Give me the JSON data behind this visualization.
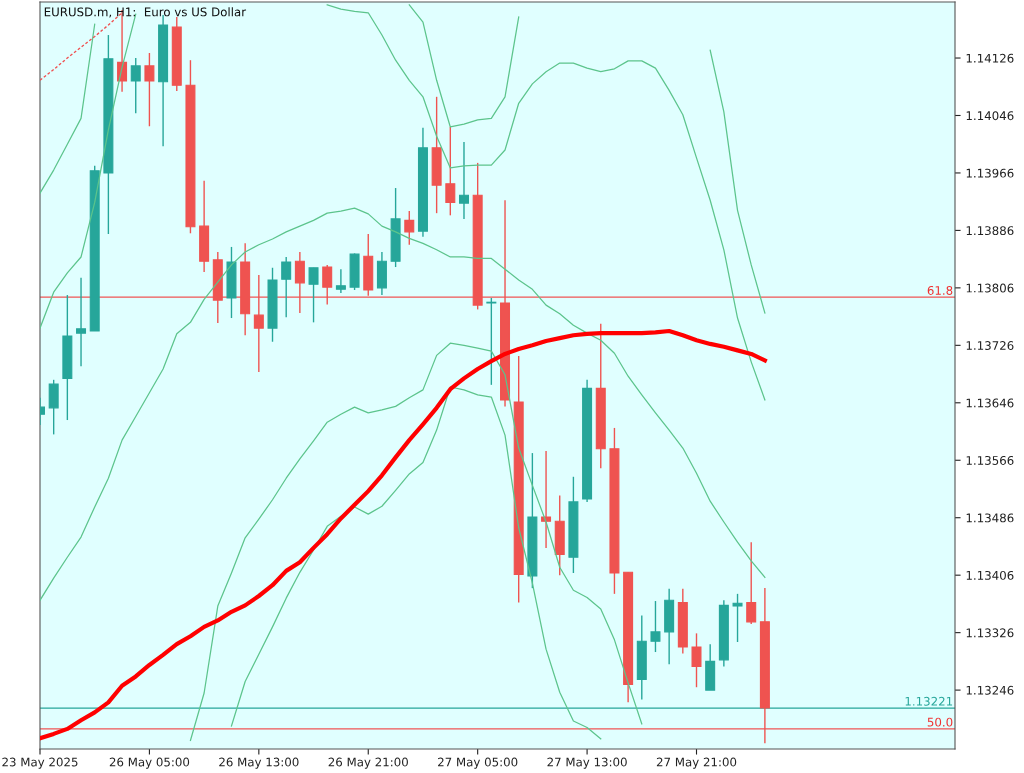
{
  "chart_data": {
    "type": "candlestick",
    "title": "EURUSD.m, H1:  Euro vs US Dollar",
    "categories": [
      "23 May 2025",
      null,
      null,
      null,
      null,
      null,
      null,
      null,
      "26 May 05:00",
      null,
      null,
      null,
      null,
      null,
      null,
      null,
      "26 May 13:00",
      null,
      null,
      null,
      null,
      null,
      null,
      null,
      "26 May 21:00",
      null,
      null,
      null,
      null,
      null,
      null,
      null,
      "27 May 05:00",
      null,
      null,
      null,
      null,
      null,
      null,
      null,
      "27 May 13:00",
      null,
      null,
      null,
      null,
      null,
      null,
      null,
      "27 May 21:00",
      null,
      null,
      null,
      null,
      null
    ],
    "ohlc": [
      [
        1.1363,
        1.13653,
        1.13615,
        1.1364
      ],
      [
        1.13639,
        1.13678,
        1.13602,
        1.13672
      ],
      [
        1.1368,
        1.13796,
        1.13622,
        1.13739
      ],
      [
        1.13743,
        1.1382,
        1.13697,
        1.13749
      ],
      [
        1.13746,
        1.13976,
        1.13746,
        1.13969
      ],
      [
        1.13966,
        1.14158,
        1.13881,
        1.14125
      ],
      [
        1.1412,
        1.14193,
        1.14079,
        1.14094
      ],
      [
        1.14094,
        1.14126,
        1.14049,
        1.14115
      ],
      [
        1.14115,
        1.14133,
        1.14031,
        1.14094
      ],
      [
        1.14093,
        1.14186,
        1.14003,
        1.14172
      ],
      [
        1.14169,
        1.14183,
        1.1408,
        1.14088
      ],
      [
        1.14088,
        1.14123,
        1.13882,
        1.13891
      ],
      [
        1.13892,
        1.13955,
        1.13828,
        1.13843
      ],
      [
        1.13845,
        1.13856,
        1.13757,
        1.13789
      ],
      [
        1.13792,
        1.13863,
        1.13764,
        1.13842
      ],
      [
        1.13842,
        1.13868,
        1.1374,
        1.1377
      ],
      [
        1.13768,
        1.13824,
        1.13689,
        1.1375
      ],
      [
        1.1375,
        1.13834,
        1.13731,
        1.13817
      ],
      [
        1.13818,
        1.13849,
        1.13765,
        1.13842
      ],
      [
        1.13843,
        1.13856,
        1.13771,
        1.13813
      ],
      [
        1.13811,
        1.13834,
        1.13758,
        1.13834
      ],
      [
        1.13835,
        1.13838,
        1.13783,
        1.13807
      ],
      [
        1.13804,
        1.13832,
        1.13799,
        1.13809
      ],
      [
        1.13807,
        1.13854,
        1.13803,
        1.13853
      ],
      [
        1.1385,
        1.13881,
        1.13795,
        1.13803
      ],
      [
        1.13806,
        1.13856,
        1.13796,
        1.13843
      ],
      [
        1.13843,
        1.13945,
        1.13835,
        1.13902
      ],
      [
        1.139,
        1.13913,
        1.13866,
        1.13884
      ],
      [
        1.13885,
        1.14029,
        1.13877,
        1.14001
      ],
      [
        1.14001,
        1.14072,
        1.1391,
        1.13949
      ],
      [
        1.13951,
        1.1403,
        1.13907,
        1.13925
      ],
      [
        1.13924,
        1.14009,
        1.13902,
        1.13935
      ],
      [
        1.13935,
        1.1398,
        1.13776,
        1.13782
      ],
      [
        1.13785,
        1.13792,
        1.13671,
        1.13786
      ],
      [
        1.13785,
        1.13928,
        1.13641,
        1.1365
      ],
      [
        1.13647,
        1.13711,
        1.13368,
        1.13407
      ],
      [
        1.13405,
        1.13576,
        1.13388,
        1.13487
      ],
      [
        1.13487,
        1.13579,
        1.13444,
        1.13481
      ],
      [
        1.13481,
        1.13517,
        1.13406,
        1.13435
      ],
      [
        1.13431,
        1.13543,
        1.13409,
        1.13508
      ],
      [
        1.13512,
        1.13678,
        1.13508,
        1.13666
      ],
      [
        1.13666,
        1.13756,
        1.13555,
        1.13582
      ],
      [
        1.13582,
        1.13611,
        1.1338,
        1.13409
      ],
      [
        1.1341,
        1.1341,
        1.13229,
        1.13254
      ],
      [
        1.13261,
        1.1335,
        1.13233,
        1.13314
      ],
      [
        1.13314,
        1.1337,
        1.13299,
        1.13327
      ],
      [
        1.13327,
        1.13387,
        1.13282,
        1.13371
      ],
      [
        1.13368,
        1.13387,
        1.13297,
        1.13306
      ],
      [
        1.13306,
        1.13325,
        1.1325,
        1.13279
      ],
      [
        1.13246,
        1.1331,
        1.13246,
        1.13286
      ],
      [
        1.13288,
        1.13371,
        1.13279,
        1.13364
      ],
      [
        1.13363,
        1.1338,
        1.13313,
        1.13367
      ],
      [
        1.13368,
        1.13452,
        1.13338,
        1.13341
      ],
      [
        1.13341,
        1.13388,
        1.13172,
        1.13221
      ]
    ],
    "colors": [
      "#26a69a",
      "#26a69a",
      "#26a69a",
      "#26a69a",
      "#26a69a",
      "#26a69a",
      "#ef5350",
      "#26a69a",
      "#ef5350",
      "#26a69a",
      "#ef5350",
      "#ef5350",
      "#ef5350",
      "#ef5350",
      "#26a69a",
      "#ef5350",
      "#ef5350",
      "#26a69a",
      "#26a69a",
      "#ef5350",
      "#26a69a",
      "#ef5350",
      "#26a69a",
      "#26a69a",
      "#ef5350",
      "#26a69a",
      "#26a69a",
      "#ef5350",
      "#26a69a",
      "#ef5350",
      "#ef5350",
      "#26a69a",
      "#ef5350",
      "#26a69a",
      "#ef5350",
      "#ef5350",
      "#26a69a",
      "#ef5350",
      "#ef5350",
      "#26a69a",
      "#26a69a",
      "#ef5350",
      "#ef5350",
      "#ef5350",
      "#26a69a",
      "#26a69a",
      "#26a69a",
      "#ef5350",
      "#ef5350",
      "#26a69a",
      "#26a69a",
      "#26a69a",
      "#ef5350",
      "#ef5350"
    ],
    "series": [
      {
        "type": "line",
        "color": "#5cc48c",
        "values": [
          1.1375,
          1.138,
          1.13827,
          1.13849,
          1.13925,
          1.14026,
          1.14113,
          1.14187,
          null,
          null,
          null,
          null,
          null,
          null,
          null,
          null,
          null,
          null,
          null,
          null,
          null,
          null,
          null,
          null,
          null,
          null,
          null,
          1.142,
          1.14176,
          1.14095,
          1.1403,
          1.14034,
          1.1404,
          1.14042,
          1.14072,
          1.14183,
          null,
          null,
          null,
          null,
          null,
          null,
          null,
          null,
          null,
          null,
          null,
          null,
          null,
          1.14137,
          1.14051,
          1.13914,
          1.13838,
          1.13771
        ]
      },
      {
        "type": "line",
        "color": "#5cc48c",
        "values": [
          1.13938,
          1.1397,
          1.14006,
          1.14042,
          1.14173,
          null,
          null,
          null,
          null,
          null,
          null,
          null,
          null,
          null,
          null,
          null,
          null,
          null,
          null,
          null,
          null,
          1.142,
          1.14194,
          1.14191,
          1.14189,
          1.14158,
          1.14123,
          1.14095,
          1.14072,
          1.14017,
          1.13973,
          1.13976,
          1.13977,
          1.13977,
          1.13998,
          1.14063,
          1.1409,
          1.14107,
          1.14119,
          1.14119,
          1.14112,
          1.14107,
          1.14111,
          1.14122,
          1.14122,
          1.14112,
          1.14081,
          1.14047,
          1.13987,
          1.13928,
          1.13859,
          1.13764,
          1.13703,
          1.1365
        ]
      },
      {
        "type": "line",
        "color": "#5cc48c",
        "values": [
          1.13371,
          1.13402,
          1.13431,
          1.13459,
          1.13501,
          1.13541,
          1.13594,
          1.13627,
          1.1366,
          1.13693,
          1.13742,
          1.13758,
          1.1379,
          1.13814,
          1.13838,
          1.13856,
          1.13866,
          1.13874,
          1.13884,
          1.13892,
          1.139,
          1.1391,
          1.13913,
          1.13917,
          1.13909,
          1.13892,
          1.13884,
          1.13875,
          1.13868,
          1.13859,
          1.13849,
          1.13849,
          1.13847,
          1.13847,
          1.13832,
          1.13817,
          1.13804,
          1.13782,
          1.1377,
          1.13754,
          1.13743,
          1.13733,
          1.13715,
          1.13683,
          1.13657,
          1.13632,
          1.13608,
          1.13583,
          1.13548,
          1.13509,
          1.1348,
          1.13452,
          1.13426,
          1.13403
        ]
      },
      {
        "type": "line",
        "color": "#5cc48c",
        "values": [
          null,
          null,
          null,
          null,
          null,
          null,
          null,
          null,
          null,
          null,
          null,
          1.13176,
          1.13242,
          1.13363,
          1.13409,
          1.13458,
          1.13484,
          1.13511,
          1.13541,
          1.13568,
          1.13593,
          1.13619,
          1.1363,
          1.1364,
          1.13632,
          1.13636,
          1.13641,
          1.13653,
          1.13664,
          1.13712,
          1.13729,
          1.13726,
          1.13722,
          1.13718,
          1.13685,
          1.13583,
          1.13531,
          1.1348,
          1.13417,
          1.13385,
          1.13375,
          1.13359,
          1.13316,
          1.13256,
          1.13199,
          null,
          null,
          null,
          null,
          null,
          null,
          null,
          null,
          null
        ]
      },
      {
        "type": "line",
        "color": "#5cc48c",
        "values": [
          null,
          null,
          null,
          null,
          null,
          null,
          null,
          null,
          null,
          null,
          null,
          null,
          null,
          null,
          1.13196,
          1.13258,
          1.13296,
          1.13334,
          1.13374,
          1.1341,
          1.13441,
          1.13474,
          1.13488,
          1.13501,
          1.13491,
          1.13502,
          1.13524,
          1.13547,
          1.13563,
          1.13608,
          1.13668,
          1.13664,
          1.13657,
          1.13654,
          1.13601,
          1.13472,
          1.13395,
          1.13303,
          1.13243,
          1.13203,
          1.13194,
          1.13178,
          null,
          null,
          null,
          null,
          null,
          null,
          null,
          null,
          null,
          null,
          null,
          null
        ]
      },
      {
        "type": "line",
        "color": "#ff0000",
        "values": [
          1.13179,
          1.13185,
          1.13192,
          1.13204,
          1.13215,
          1.13229,
          1.13252,
          1.13265,
          1.13281,
          1.13295,
          1.1331,
          1.13321,
          1.13334,
          1.13343,
          1.13355,
          1.13364,
          1.13377,
          1.13392,
          1.13412,
          1.13424,
          1.13444,
          1.13463,
          1.13485,
          1.13504,
          1.13523,
          1.13545,
          1.1357,
          1.13594,
          1.13616,
          1.13639,
          1.13665,
          1.1368,
          1.13693,
          1.13704,
          1.13714,
          1.13721,
          1.13726,
          1.13732,
          1.13736,
          1.1374,
          1.13742,
          1.13743,
          1.13743,
          1.13743,
          1.13743,
          1.13744,
          1.13746,
          1.1374,
          1.13733,
          1.13728,
          1.13724,
          1.13719,
          1.13714,
          1.13705
        ]
      },
      {
        "type": "line",
        "color": "#f05050",
        "line_style": "dashed",
        "values": [
          1.14095,
          1.1411,
          1.14126,
          1.14141,
          1.14156,
          1.14172,
          1.14189,
          null,
          null,
          null,
          null,
          null,
          null,
          null,
          null,
          null,
          null,
          null,
          null,
          null,
          null,
          null,
          null,
          null,
          null,
          null,
          null,
          null,
          null,
          null,
          null,
          null,
          null,
          null,
          null,
          null,
          null,
          null,
          null,
          null,
          null,
          null,
          null,
          null,
          null,
          null,
          null,
          null,
          null,
          null,
          null,
          null,
          null,
          null
        ]
      }
    ],
    "ylim": [
      1.13164,
      1.14204
    ],
    "yticks": [
      1.13246,
      1.13326,
      1.13406,
      1.13486,
      1.13566,
      1.13646,
      1.13726,
      1.13806,
      1.13886,
      1.13966,
      1.14046,
      1.14126
    ],
    "ref_lines": [
      {
        "axis": "y",
        "value": 1.13793,
        "color": "#f05454"
      },
      {
        "axis": "y",
        "value": 1.13192,
        "color": "#f05454"
      },
      {
        "axis": "y",
        "value": 1.13221,
        "label": "1.13221",
        "color": "#26a69a"
      }
    ],
    "annotations": [
      {
        "text": "61.8",
        "y": 1.13793
      },
      {
        "text": "50.0",
        "y": 1.13192
      }
    ],
    "grid": false,
    "legend": false
  }
}
